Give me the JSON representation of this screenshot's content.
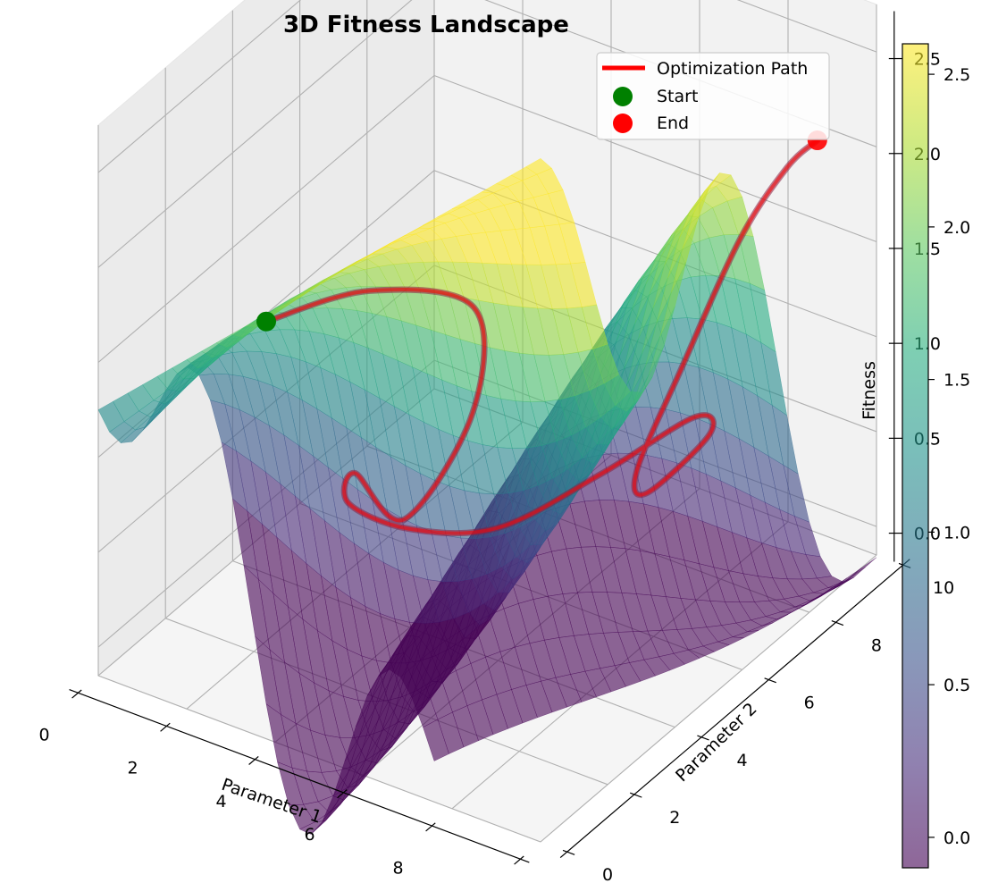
{
  "chart_data": {
    "type": "surface3d",
    "title": "3D Fitness Landscape",
    "xlabel": "Parameter 1",
    "ylabel": "Parameter 2",
    "zlabel": "Fitness",
    "xlim": [
      0,
      10
    ],
    "ylim": [
      0,
      10
    ],
    "zlim": [
      -0.15,
      2.75
    ],
    "x_ticks": [
      "0",
      "2",
      "4",
      "6",
      "8",
      "10"
    ],
    "y_ticks": [
      "0",
      "2",
      "4",
      "6",
      "8",
      "10"
    ],
    "z_ticks": [
      "0.0",
      "0.5",
      "1.0",
      "1.5",
      "2.0",
      "2.5"
    ],
    "colormap": "viridis",
    "surface_alpha": 0.6,
    "colorbar": {
      "range": [
        -0.1,
        2.6
      ],
      "ticks": [
        "0.0",
        "0.5",
        "1.0",
        "1.5",
        "2.0",
        "2.5"
      ]
    },
    "legend": {
      "placement": "upper right",
      "entries": [
        {
          "label": "Optimization Path",
          "marker": "line",
          "color": "#ff0000"
        },
        {
          "label": "Start",
          "marker": "circle",
          "color": "#008000"
        },
        {
          "label": "End",
          "marker": "circle",
          "color": "#ff0000"
        }
      ]
    },
    "path": {
      "color": "#ff0000",
      "points": [
        {
          "x": 0.0,
          "y": 5.0,
          "z": 0.96
        },
        {
          "x": 1.2,
          "y": 6.5,
          "z": 1.0
        },
        {
          "x": 2.8,
          "y": 7.5,
          "z": 0.9
        },
        {
          "x": 3.6,
          "y": 6.4,
          "z": 0.58
        },
        {
          "x": 3.5,
          "y": 4.5,
          "z": 0.3
        },
        {
          "x": 3.0,
          "y": 3.7,
          "z": 0.62
        },
        {
          "x": 3.3,
          "y": 3.1,
          "z": 0.58
        },
        {
          "x": 4.5,
          "y": 3.3,
          "z": 0.52
        },
        {
          "x": 6.0,
          "y": 4.0,
          "z": 0.55
        },
        {
          "x": 6.8,
          "y": 6.0,
          "z": 0.6
        },
        {
          "x": 7.4,
          "y": 8.0,
          "z": 0.65
        },
        {
          "x": 7.6,
          "y": 8.2,
          "z": 0.55
        },
        {
          "x": 7.7,
          "y": 6.2,
          "z": 0.55
        },
        {
          "x": 8.0,
          "y": 5.5,
          "z": 0.8
        },
        {
          "x": 8.6,
          "y": 6.0,
          "z": 1.3
        },
        {
          "x": 9.2,
          "y": 7.0,
          "z": 1.9
        },
        {
          "x": 9.5,
          "y": 8.0,
          "z": 2.15
        },
        {
          "x": 9.65,
          "y": 8.7,
          "z": 2.2
        }
      ],
      "start": {
        "x": 0.0,
        "y": 5.0,
        "z": 0.96
      },
      "end": {
        "x": 9.65,
        "y": 8.7,
        "z": 2.2
      }
    }
  }
}
